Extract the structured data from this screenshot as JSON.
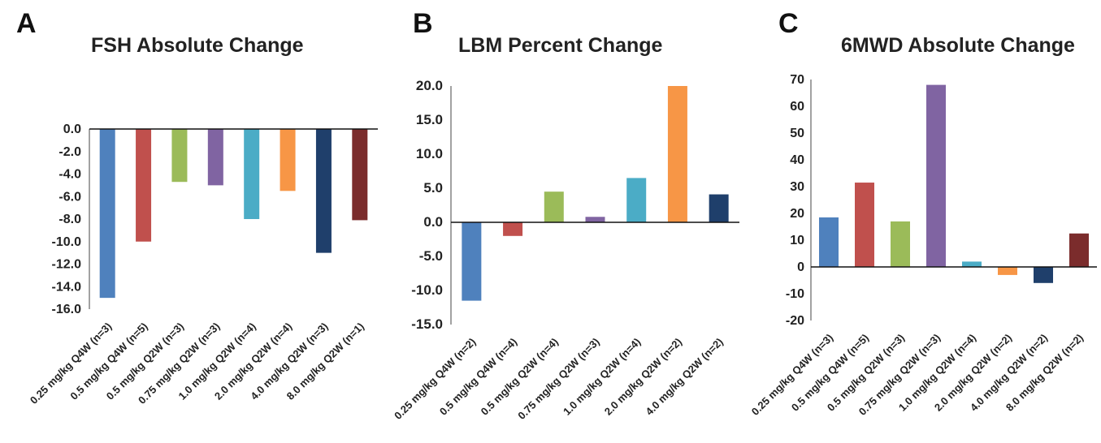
{
  "chart_data": [
    {
      "panel_letter": "A",
      "type": "bar",
      "title": "FSH Absolute Change",
      "xlabel": "",
      "ylabel": "",
      "categories": [
        "0.25 mg/kg Q4W (n=3)",
        "0.5 mg/kg Q4W (n=5)",
        "0.5 mg/kg Q2W (n=3)",
        "0.75 mg/kg Q2W (n=3)",
        "1.0 mg/kg Q2W (n=4)",
        "2.0 mg/kg Q2W (n=4)",
        "4.0 mg/kg Q2W (n=3)",
        "8.0 mg/kg Q2W (n=1)"
      ],
      "values": [
        -15.0,
        -10.0,
        -4.7,
        -5.0,
        -8.0,
        -5.5,
        -11.0,
        -8.1
      ],
      "colors": [
        "#4f81bd",
        "#c0504d",
        "#9bbb59",
        "#8064a2",
        "#4bacc6",
        "#f79646",
        "#1f3f6b",
        "#7b2c2c"
      ],
      "ylim": [
        -16,
        0
      ],
      "yticks": [
        0,
        -2,
        -4,
        -6,
        -8,
        -10,
        -12,
        -14,
        -16
      ],
      "ytick_labels": [
        "0.0",
        "-2.0",
        "-4.0",
        "-6.0",
        "-8.0",
        "-10.0",
        "-12.0",
        "-14.0",
        "-16.0"
      ],
      "grid": false,
      "legend": "none"
    },
    {
      "panel_letter": "B",
      "type": "bar",
      "title": "LBM Percent Change",
      "xlabel": "",
      "ylabel": "",
      "categories": [
        "0.25 mg/kg Q4W (n=2)",
        "0.5 mg/kg Q4W (n=4)",
        "0.5 mg/kg Q2W (n=4)",
        "0.75 mg/kg Q2W (n=3)",
        "1.0 mg/kg Q2W (n=4)",
        "2.0 mg/kg Q2W (n=2)",
        "4.0 mg/kg Q2W (n=2)"
      ],
      "values": [
        -11.5,
        -2.0,
        4.5,
        0.8,
        6.5,
        20.0,
        4.1
      ],
      "colors": [
        "#4f81bd",
        "#c0504d",
        "#9bbb59",
        "#8064a2",
        "#4bacc6",
        "#f79646",
        "#1f3f6b"
      ],
      "ylim": [
        -15,
        20
      ],
      "yticks": [
        20,
        15,
        10,
        5,
        0,
        -5,
        -10,
        -15
      ],
      "ytick_labels": [
        "20.0",
        "15.0",
        "10.0",
        "5.0",
        "0.0",
        "-5.0",
        "-10.0",
        "-15.0"
      ],
      "grid": false,
      "legend": "none"
    },
    {
      "panel_letter": "C",
      "type": "bar",
      "title": "6MWD Absolute Change",
      "xlabel": "",
      "ylabel": "",
      "categories": [
        "0.25 mg/kg Q4W (n=3)",
        "0.5 mg/kg Q4W (n=5)",
        "0.5 mg/kg Q2W (n=3)",
        "0.75 mg/kg Q2W (n=3)",
        "1.0 mg/kg Q2W (n=4)",
        "2.0 mg/kg Q2W (n=2)",
        "4.0 mg/kg Q2W (n=2)",
        "8.0 mg/kg Q2W (n=2)"
      ],
      "values": [
        18.5,
        31.5,
        17.0,
        68.0,
        2.0,
        -3.0,
        -6.0,
        12.5
      ],
      "colors": [
        "#4f81bd",
        "#c0504d",
        "#9bbb59",
        "#8064a2",
        "#4bacc6",
        "#f79646",
        "#1f3f6b",
        "#7b2c2c"
      ],
      "ylim": [
        -20,
        70
      ],
      "yticks": [
        70,
        60,
        50,
        40,
        30,
        20,
        10,
        0,
        -10,
        -20
      ],
      "ytick_labels": [
        "70",
        "60",
        "50",
        "40",
        "30",
        "20",
        "10",
        "0",
        "-10",
        "-20"
      ],
      "grid": false,
      "legend": "none"
    }
  ]
}
